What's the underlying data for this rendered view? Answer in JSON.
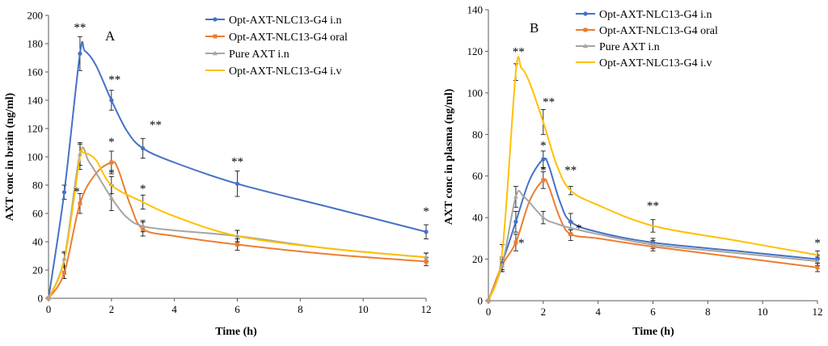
{
  "chart_data": [
    {
      "type": "line",
      "panel_label": "A",
      "xlabel": "Time  (h)",
      "ylabel": "AXT conc in brain  (ng/ml)",
      "xlim": [
        0,
        12
      ],
      "ylim": [
        0,
        200
      ],
      "xticks": [
        0,
        2,
        4,
        6,
        8,
        10,
        12
      ],
      "yticks": [
        0,
        20,
        40,
        60,
        80,
        100,
        120,
        140,
        160,
        180,
        200
      ],
      "grid": false,
      "legend_position": "top-right",
      "x": [
        0,
        0.5,
        1,
        2,
        3,
        6,
        12
      ],
      "series": [
        {
          "name": "Opt-AXT-NLC13-G4 i.n",
          "color": "#4472C4",
          "values": [
            0,
            75,
            173,
            140,
            106,
            81,
            47
          ],
          "errors": [
            0,
            5,
            12,
            7,
            7,
            9,
            5
          ],
          "curve": [
            [
              0,
              0
            ],
            [
              0.5,
              75
            ],
            [
              1,
              173
            ],
            [
              1.15,
              175
            ],
            [
              1.5,
              165
            ],
            [
              2,
              140
            ],
            [
              2.5,
              118
            ],
            [
              3,
              106
            ],
            [
              4,
              96
            ],
            [
              6,
              81
            ],
            [
              9,
              64
            ],
            [
              12,
              47
            ]
          ]
        },
        {
          "name": "Opt-AXT-NLC13-G4 oral",
          "color": "#ED7D31",
          "values": [
            0,
            18,
            67,
            96,
            49,
            38,
            26
          ],
          "errors": [
            0,
            4,
            7,
            8,
            5,
            4,
            3
          ],
          "curve": [
            [
              0,
              0
            ],
            [
              0.5,
              18
            ],
            [
              1,
              67
            ],
            [
              1.5,
              88
            ],
            [
              2,
              96
            ],
            [
              2.2,
              92
            ],
            [
              2.6,
              66
            ],
            [
              3,
              49
            ],
            [
              4,
              44
            ],
            [
              6,
              38
            ],
            [
              9,
              31
            ],
            [
              12,
              26
            ]
          ]
        },
        {
          "name": "Pure AXT i.n",
          "color": "#A5A5A5",
          "values": [
            0,
            28,
            102,
            71,
            51,
            44,
            29
          ],
          "errors": [
            0,
            5,
            8,
            9,
            4,
            4,
            3
          ],
          "curve": [
            [
              0,
              0
            ],
            [
              0.5,
              28
            ],
            [
              1,
              102
            ],
            [
              1.3,
              96
            ],
            [
              2,
              71
            ],
            [
              2.5,
              57
            ],
            [
              3,
              51
            ],
            [
              4,
              48
            ],
            [
              6,
              44
            ],
            [
              9,
              35
            ],
            [
              12,
              29
            ]
          ]
        },
        {
          "name": "Opt-AXT-NLC13-G4 i.v",
          "color": "#FFC000",
          "values": [
            0,
            27,
            100,
            80,
            68,
            44,
            29
          ],
          "errors": [
            0,
            5,
            9,
            6,
            5,
            4,
            3
          ],
          "curve": [
            [
              0,
              0
            ],
            [
              0.5,
              27
            ],
            [
              1,
              100
            ],
            [
              1.1,
              103
            ],
            [
              1.5,
              98
            ],
            [
              2,
              80
            ],
            [
              3,
              68
            ],
            [
              4,
              58
            ],
            [
              6,
              44
            ],
            [
              9,
              35
            ],
            [
              12,
              29
            ]
          ]
        }
      ],
      "annotations": [
        {
          "text": "**",
          "x": 1.0,
          "y": 189
        },
        {
          "text": "**",
          "x": 2.1,
          "y": 152
        },
        {
          "text": "**",
          "x": 3.4,
          "y": 120
        },
        {
          "text": "**",
          "x": 6.0,
          "y": 94
        },
        {
          "text": "*",
          "x": 12.0,
          "y": 59
        },
        {
          "text": "*",
          "x": 2.0,
          "y": 108
        },
        {
          "text": "*",
          "x": 2.0,
          "y": 86
        },
        {
          "text": "*",
          "x": 3.0,
          "y": 75
        },
        {
          "text": "*",
          "x": 0.9,
          "y": 73
        }
      ]
    },
    {
      "type": "line",
      "panel_label": "B",
      "xlabel": "Time  (h)",
      "ylabel": "AXT conc in plasma (ng/ml)",
      "xlim": [
        0,
        12
      ],
      "ylim": [
        0,
        140
      ],
      "xticks": [
        0,
        2,
        4,
        6,
        8,
        10,
        12
      ],
      "yticks": [
        0,
        20,
        40,
        60,
        80,
        100,
        120,
        140
      ],
      "grid": false,
      "legend_position": "top-right",
      "x": [
        0,
        0.5,
        1,
        2,
        3,
        6,
        12
      ],
      "series": [
        {
          "name": "Opt-AXT-NLC13-G4 i.n",
          "color": "#4472C4",
          "values": [
            0,
            18,
            38,
            68,
            38,
            28,
            20
          ],
          "errors": [
            0,
            3,
            5,
            4,
            4,
            2,
            2
          ],
          "curve": [
            [
              0,
              0
            ],
            [
              0.5,
              18
            ],
            [
              1,
              38
            ],
            [
              1.5,
              58
            ],
            [
              2,
              68
            ],
            [
              2.2,
              65
            ],
            [
              2.6,
              48
            ],
            [
              3,
              38
            ],
            [
              4,
              33
            ],
            [
              6,
              28
            ],
            [
              9,
              24
            ],
            [
              12,
              20
            ]
          ]
        },
        {
          "name": "Opt-AXT-NLC13-G4 oral",
          "color": "#ED7D31",
          "values": [
            0,
            17,
            28,
            58,
            32,
            26,
            16
          ],
          "errors": [
            0,
            3,
            4,
            4,
            3,
            2,
            2
          ],
          "curve": [
            [
              0,
              0
            ],
            [
              0.5,
              17
            ],
            [
              1,
              28
            ],
            [
              1.5,
              48
            ],
            [
              2,
              58
            ],
            [
              2.2,
              55
            ],
            [
              2.6,
              40
            ],
            [
              3,
              32
            ],
            [
              4,
              30
            ],
            [
              6,
              26
            ],
            [
              9,
              21
            ],
            [
              12,
              16
            ]
          ]
        },
        {
          "name": "Pure AXT i.n",
          "color": "#A5A5A5",
          "values": [
            0,
            17,
            50,
            40,
            35,
            27,
            19
          ],
          "errors": [
            0,
            3,
            5,
            3,
            3,
            2,
            2
          ],
          "curve": [
            [
              0,
              0
            ],
            [
              0.5,
              17
            ],
            [
              1,
              50
            ],
            [
              1.3,
              50
            ],
            [
              2,
              40
            ],
            [
              2.5,
              37
            ],
            [
              3,
              35
            ],
            [
              4,
              32
            ],
            [
              6,
              27
            ],
            [
              9,
              23
            ],
            [
              12,
              19
            ]
          ]
        },
        {
          "name": "Opt-AXT-NLC13-G4 i.v",
          "color": "#FFC000",
          "values": [
            0,
            23,
            110,
            86,
            53,
            36,
            22
          ],
          "errors": [
            0,
            4,
            4,
            6,
            2,
            3,
            2
          ],
          "curve": [
            [
              0,
              0
            ],
            [
              0.5,
              23
            ],
            [
              1,
              110
            ],
            [
              1.2,
              112
            ],
            [
              1.5,
              105
            ],
            [
              2,
              86
            ],
            [
              2.5,
              65
            ],
            [
              3,
              53
            ],
            [
              4,
              46
            ],
            [
              6,
              36
            ],
            [
              9,
              29
            ],
            [
              12,
              22
            ]
          ]
        }
      ],
      "annotations": [
        {
          "text": "**",
          "x": 1.1,
          "y": 118
        },
        {
          "text": "**",
          "x": 2.2,
          "y": 94
        },
        {
          "text": "**",
          "x": 3.0,
          "y": 61
        },
        {
          "text": "**",
          "x": 6.0,
          "y": 44
        },
        {
          "text": "*",
          "x": 12.0,
          "y": 26
        },
        {
          "text": "*",
          "x": 2.0,
          "y": 73
        },
        {
          "text": "*",
          "x": 2.0,
          "y": 61
        },
        {
          "text": "*",
          "x": 1.2,
          "y": 26
        },
        {
          "text": "*",
          "x": 3.3,
          "y": 33
        }
      ]
    }
  ]
}
